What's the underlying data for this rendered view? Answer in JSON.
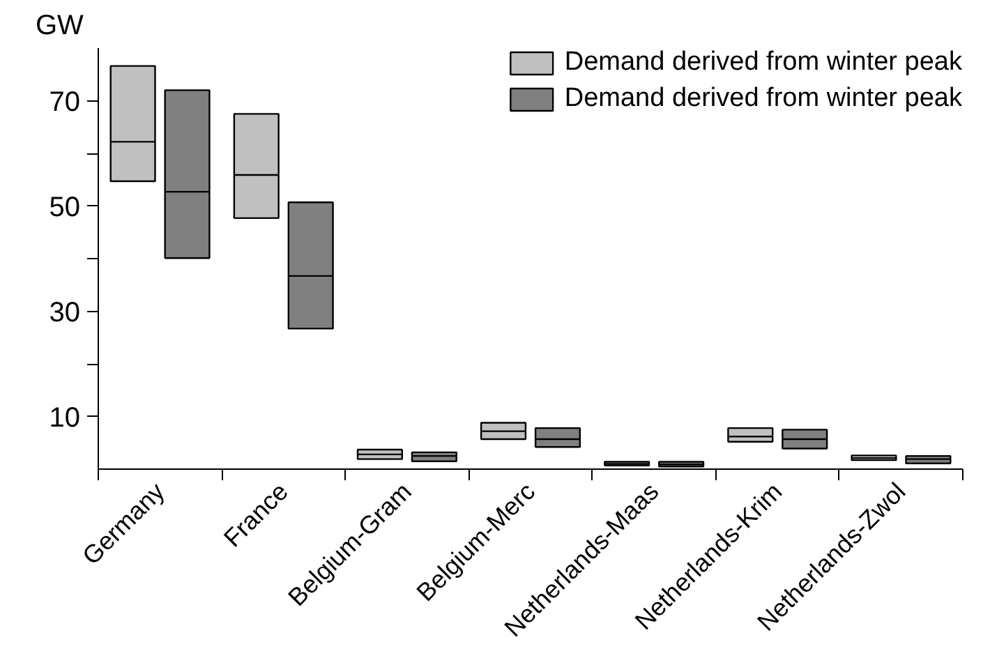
{
  "chart_data": {
    "type": "box",
    "ylabel": "GW",
    "categories": [
      "Germany",
      "France",
      "Belgium-Gram",
      "Belgium-Merc",
      "Netherlands-Maas",
      "Netherlands-Krim",
      "Netherlands-Zwol"
    ],
    "ylim": [
      0,
      80
    ],
    "yticks": [
      10,
      {
        "value": 20,
        "label": null
      },
      30,
      {
        "value": 40,
        "label": null
      },
      50,
      {
        "value": 60,
        "label": null
      },
      70
    ],
    "legend": "top right",
    "grid": false,
    "series": [
      {
        "name": "Demand derived from winter peak",
        "color": "#c0c0c0",
        "boxes": [
          {
            "low": 54.7,
            "q1": 54.7,
            "median": 62.2,
            "q3": 76.6,
            "high": 76.6
          },
          {
            "low": 47.7,
            "q1": 47.7,
            "median": 55.9,
            "q3": 67.5,
            "high": 67.5
          },
          {
            "low": 1.9,
            "q1": 1.9,
            "median": 2.8,
            "q3": 3.7,
            "high": 3.7
          },
          {
            "low": 5.7,
            "q1": 5.7,
            "median": 7.2,
            "q3": 8.8,
            "high": 8.8
          },
          {
            "low": 0.7,
            "q1": 0.7,
            "median": 1.0,
            "q3": 1.4,
            "high": 1.4
          },
          {
            "low": 5.2,
            "q1": 5.2,
            "median": 6.2,
            "q3": 7.8,
            "high": 7.8
          },
          {
            "low": 1.7,
            "q1": 1.7,
            "median": 2.1,
            "q3": 2.6,
            "high": 2.6
          }
        ]
      },
      {
        "name": "Demand derived from winter peak",
        "color": "#808080",
        "boxes": [
          {
            "low": 40.1,
            "q1": 40.1,
            "median": 52.7,
            "q3": 72.0,
            "high": 72.0
          },
          {
            "low": 26.7,
            "q1": 26.7,
            "median": 36.7,
            "q3": 50.7,
            "high": 50.7
          },
          {
            "low": 1.5,
            "q1": 1.5,
            "median": 2.5,
            "q3": 3.2,
            "high": 3.2
          },
          {
            "low": 4.2,
            "q1": 4.2,
            "median": 5.7,
            "q3": 7.8,
            "high": 7.8
          },
          {
            "low": 0.5,
            "q1": 0.5,
            "median": 0.9,
            "q3": 1.4,
            "high": 1.4
          },
          {
            "low": 3.9,
            "q1": 3.9,
            "median": 5.7,
            "q3": 7.5,
            "high": 7.5
          },
          {
            "low": 1.1,
            "q1": 1.1,
            "median": 1.9,
            "q3": 2.5,
            "high": 2.5
          }
        ]
      }
    ]
  }
}
